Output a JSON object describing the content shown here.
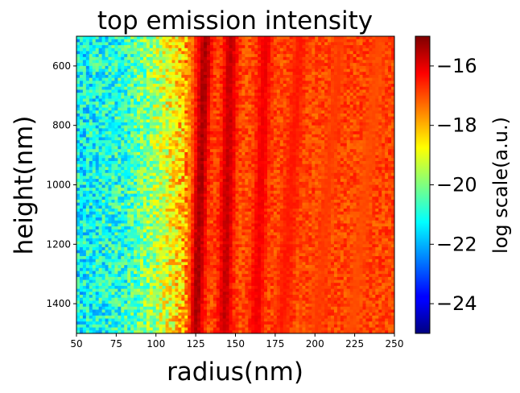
{
  "chart_data": {
    "type": "heatmap",
    "title": "top emission intensity",
    "xlabel": "radius(nm)",
    "ylabel": "height(nm)",
    "xlim": [
      50,
      250
    ],
    "ylim": [
      1500,
      500
    ],
    "x_ticks": [
      50,
      75,
      100,
      125,
      150,
      175,
      200,
      225,
      250
    ],
    "y_ticks": [
      600,
      800,
      1000,
      1200,
      1400
    ],
    "grid": false,
    "colormap": "jet",
    "colorbar": {
      "label": "log scale(a.u.)",
      "range": [
        -25,
        -15
      ],
      "ticks": [
        -24,
        -22,
        -20,
        -18,
        -16
      ],
      "tick_labels": [
        "−24",
        "−22",
        "−20",
        "−18",
        "−16"
      ]
    },
    "cell_size": {
      "radius_nm": 2,
      "height_nm": 10
    },
    "ridges": [
      {
        "radius_start": 130,
        "radius_end": 124,
        "peak_value": -15.2
      },
      {
        "radius_start": 146,
        "radius_end": 142,
        "peak_value": -15.5
      },
      {
        "radius_start": 168,
        "radius_end": 162,
        "peak_value": -16.0
      },
      {
        "radius_start": 190,
        "radius_end": 178,
        "peak_value": -16.4
      },
      {
        "radius_start": 215,
        "radius_end": 200,
        "peak_value": -16.8
      },
      {
        "radius_start": 240,
        "radius_end": 222,
        "peak_value": -17.0
      }
    ],
    "background_profile": [
      {
        "radius": 50,
        "value": -21.3
      },
      {
        "radius": 80,
        "value": -20.8
      },
      {
        "radius": 100,
        "value": -19.5
      },
      {
        "radius": 115,
        "value": -18.2
      },
      {
        "radius": 125,
        "value": -17.0
      },
      {
        "radius": 250,
        "value": -16.9
      }
    ]
  }
}
